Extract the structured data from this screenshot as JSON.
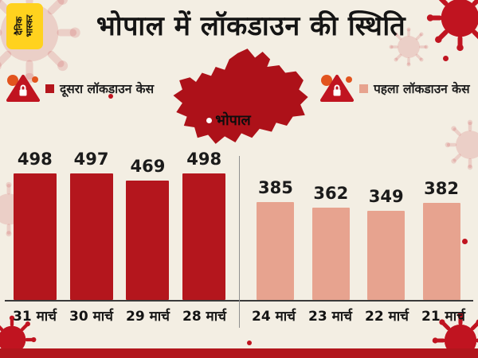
{
  "header": {
    "logo_text": "दैनिक भास्कर",
    "title": "भोपाल में लॉकडाउन की स्थिति"
  },
  "map": {
    "label": "भोपाल"
  },
  "colors": {
    "background": "#f3eee3",
    "second_lockdown_bar": "#b4161d",
    "first_lockdown_bar": "#e7a38f",
    "logo_yellow": "#ffd21e",
    "virus_red": "#c01420",
    "bottom_strip": "#b2161d"
  },
  "chart_data": {
    "type": "bar",
    "title": "भोपाल में लॉकडाउन की स्थिति",
    "value_labels": true,
    "ylim": [
      0,
      520
    ],
    "legend_position": "top",
    "series": [
      {
        "name": "दूसरा लॉकडाउन केस",
        "color": "#b4161d",
        "categories": [
          "31 मार्च",
          "30 मार्च",
          "29 मार्च",
          "28 मार्च"
        ],
        "values": [
          498,
          497,
          469,
          498
        ]
      },
      {
        "name": "पहला लॉकडाउन केस",
        "color": "#e7a38f",
        "categories": [
          "24 मार्च",
          "23 मार्च",
          "22 मार्च",
          "21 मार्च"
        ],
        "values": [
          385,
          362,
          349,
          382
        ]
      }
    ]
  }
}
